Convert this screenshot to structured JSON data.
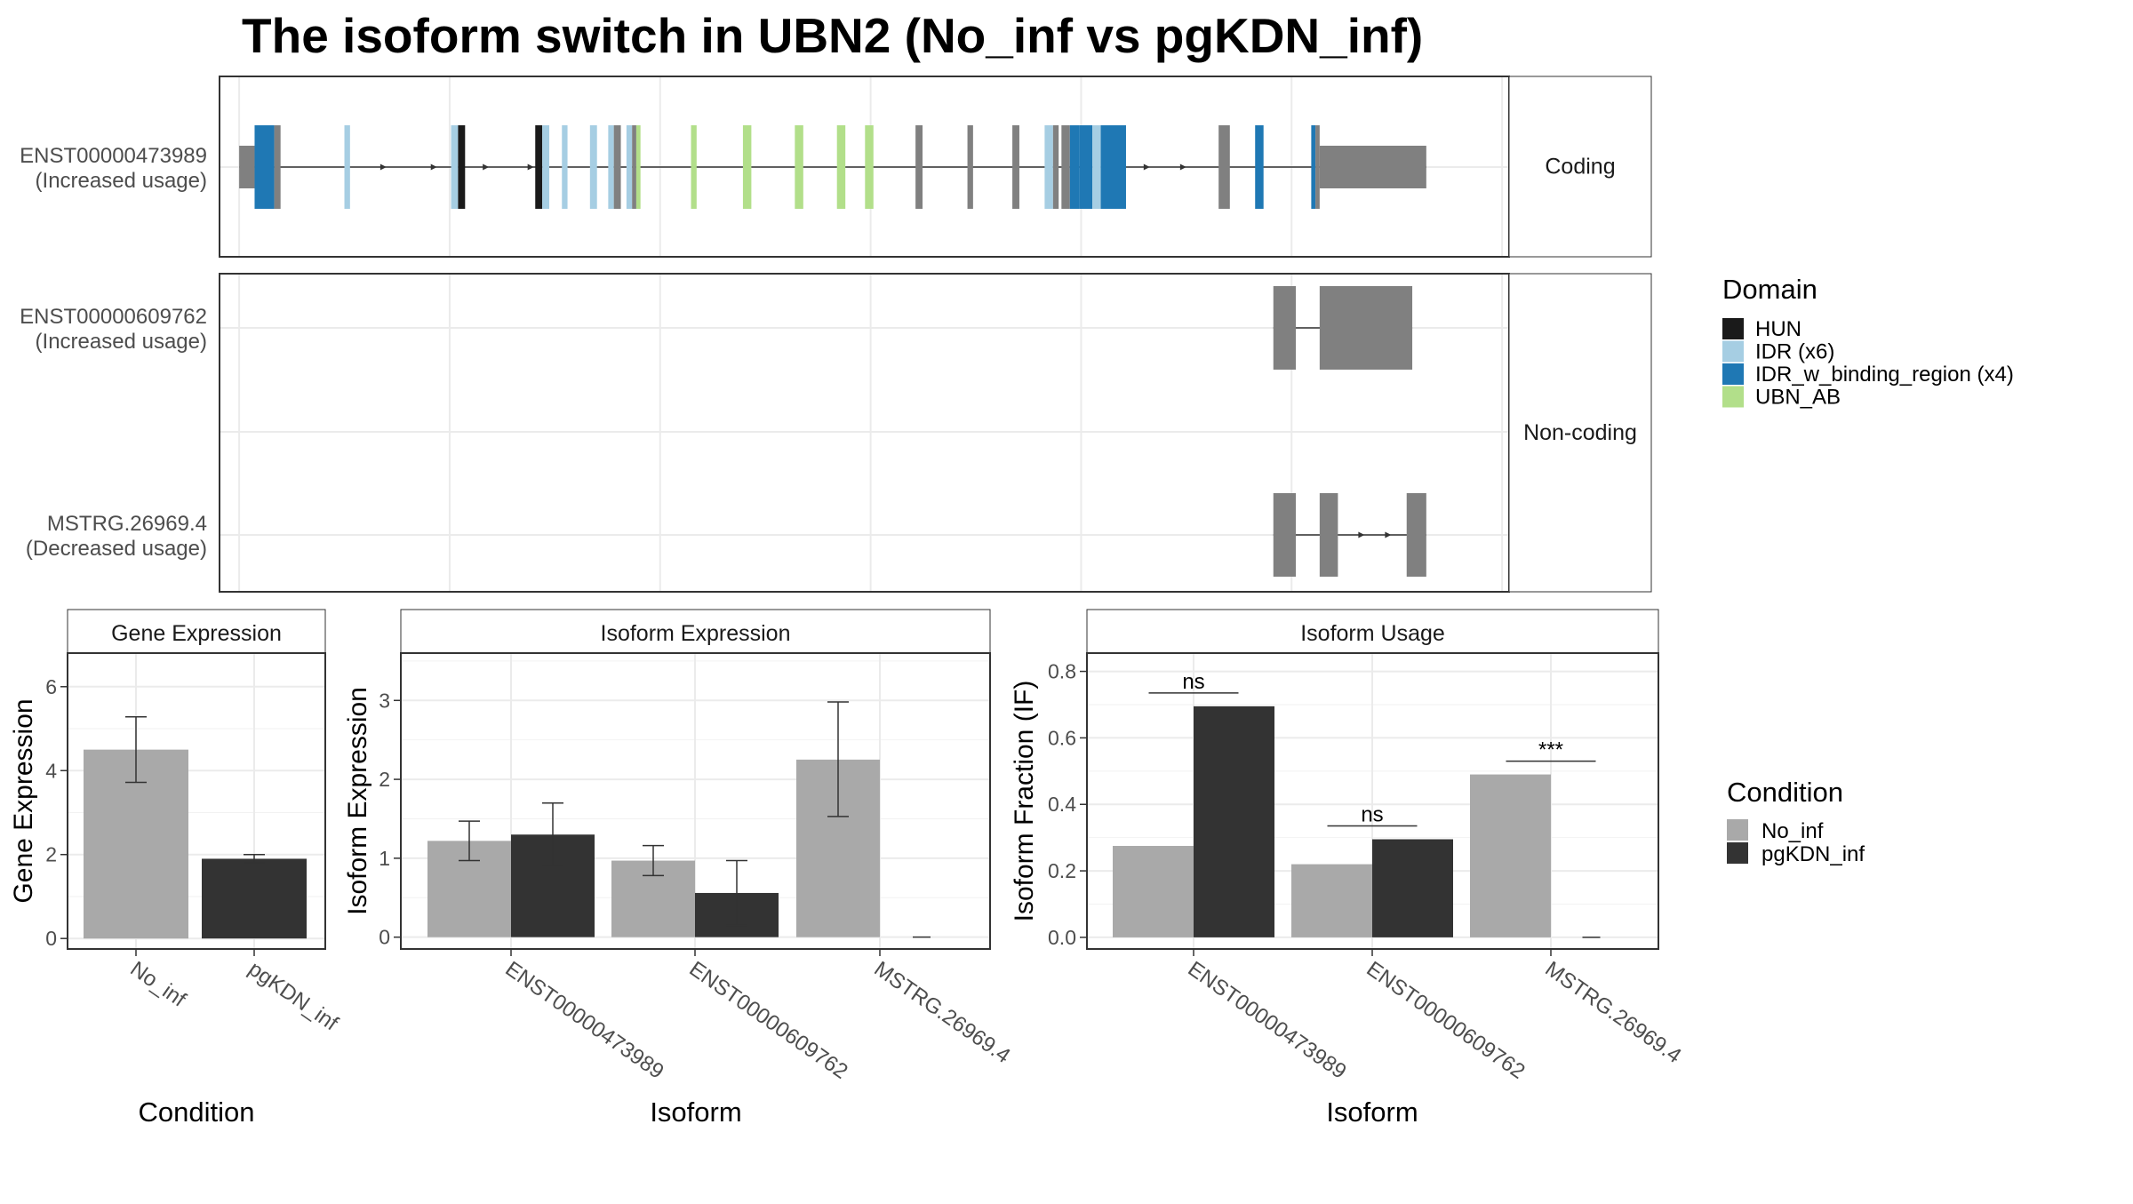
{
  "title": "The isoform switch in UBN2 (No_inf vs pgKDN_inf)",
  "colors": {
    "HUN": "#1a1a1a",
    "IDR (x6)": "#a6cee3",
    "IDR_w_binding_region (x4)": "#1f78b4",
    "UBN_AB": "#b2df8a",
    "exon_gray": "#808080",
    "No_inf": "#a9a9a9",
    "pgKDN_inf": "#333333"
  },
  "structure": {
    "facets": [
      "Coding",
      "Non-coding"
    ],
    "domain_legend_title": "Domain",
    "domains": [
      "HUN",
      "IDR (x6)",
      "IDR_w_binding_region (x4)",
      "UBN_AB"
    ],
    "isoforms": [
      {
        "id": "ENST00000473989",
        "label_line1": "ENST00000473989",
        "label_line2": "(Increased usage)",
        "facet": "Coding",
        "exons": [
          {
            "start": 0.0,
            "end": 1.1,
            "cds": false
          },
          {
            "start": 1.1,
            "end": 2.5,
            "cds": true,
            "domain": "IDR_w_binding_region (x4)"
          },
          {
            "start": 2.5,
            "end": 2.95,
            "cds": true,
            "domain": null
          },
          {
            "start": 7.5,
            "end": 7.9,
            "cds": true,
            "domain": "IDR (x6)"
          },
          {
            "start": 15.1,
            "end": 15.6,
            "cds": true,
            "domain": "IDR (x6)"
          },
          {
            "start": 15.6,
            "end": 16.1,
            "cds": true,
            "domain": "HUN"
          },
          {
            "start": 21.1,
            "end": 21.6,
            "cds": true,
            "domain": "HUN"
          },
          {
            "start": 21.6,
            "end": 22.1,
            "cds": true,
            "domain": "IDR (x6)"
          },
          {
            "start": 23.0,
            "end": 23.4,
            "cds": true,
            "domain": "IDR (x6)"
          },
          {
            "start": 25.0,
            "end": 25.5,
            "cds": true,
            "domain": "IDR (x6)"
          },
          {
            "start": 26.3,
            "end": 26.7,
            "cds": true,
            "domain": "IDR (x6)"
          },
          {
            "start": 26.7,
            "end": 27.2,
            "cds": true,
            "domain": null
          },
          {
            "start": 27.6,
            "end": 28.0,
            "cds": true,
            "domain": "IDR (x6)"
          },
          {
            "start": 28.0,
            "end": 28.3,
            "cds": true,
            "domain": null
          },
          {
            "start": 28.3,
            "end": 28.6,
            "cds": true,
            "domain": "UBN_AB"
          },
          {
            "start": 32.2,
            "end": 32.6,
            "cds": true,
            "domain": "UBN_AB"
          },
          {
            "start": 35.9,
            "end": 36.5,
            "cds": true,
            "domain": "UBN_AB"
          },
          {
            "start": 39.6,
            "end": 40.2,
            "cds": true,
            "domain": "UBN_AB"
          },
          {
            "start": 42.6,
            "end": 43.2,
            "cds": true,
            "domain": "UBN_AB"
          },
          {
            "start": 44.6,
            "end": 45.2,
            "cds": true,
            "domain": "UBN_AB"
          },
          {
            "start": 48.2,
            "end": 48.7,
            "cds": true,
            "domain": null
          },
          {
            "start": 51.9,
            "end": 52.3,
            "cds": true,
            "domain": null
          },
          {
            "start": 55.1,
            "end": 55.6,
            "cds": true,
            "domain": null
          },
          {
            "start": 57.4,
            "end": 58.0,
            "cds": true,
            "domain": "IDR (x6)"
          },
          {
            "start": 58.0,
            "end": 58.4,
            "cds": true,
            "domain": null
          },
          {
            "start": 58.6,
            "end": 59.2,
            "cds": true,
            "domain": null
          },
          {
            "start": 59.2,
            "end": 59.9,
            "cds": true,
            "domain": "IDR_w_binding_region (x4)"
          },
          {
            "start": 59.9,
            "end": 60.8,
            "cds": true,
            "domain": "IDR_w_binding_region (x4)"
          },
          {
            "start": 60.8,
            "end": 61.4,
            "cds": true,
            "domain": "IDR (x6)"
          },
          {
            "start": 61.4,
            "end": 63.2,
            "cds": true,
            "domain": "IDR_w_binding_region (x4)"
          },
          {
            "start": 69.8,
            "end": 70.6,
            "cds": true,
            "domain": null
          },
          {
            "start": 72.4,
            "end": 73.0,
            "cds": true,
            "domain": "IDR_w_binding_region (x4)"
          },
          {
            "start": 76.4,
            "end": 76.7,
            "cds": true,
            "domain": "IDR_w_binding_region (x4)"
          },
          {
            "start": 76.7,
            "end": 77.0,
            "cds": true,
            "domain": null
          },
          {
            "start": 77.0,
            "end": 84.6,
            "cds": false
          }
        ],
        "arrows": [
          10.5,
          14.1,
          17.8,
          21.0,
          64.9,
          67.5
        ]
      },
      {
        "id": "ENST00000609762",
        "label_line1": "ENST00000609762",
        "label_line2": "(Increased usage)",
        "facet": "Non-coding",
        "exons": [
          {
            "start": 73.7,
            "end": 75.3,
            "cds": true,
            "domain": null
          },
          {
            "start": 77.0,
            "end": 83.6,
            "cds": true,
            "domain": null
          }
        ],
        "arrows": []
      },
      {
        "id": "MSTRG.26969.4",
        "label_line1": "MSTRG.26969.4",
        "label_line2": "(Decreased usage)",
        "facet": "Non-coding",
        "exons": [
          {
            "start": 73.7,
            "end": 75.3,
            "cds": true,
            "domain": null
          },
          {
            "start": 77.0,
            "end": 78.3,
            "cds": true,
            "domain": null
          },
          {
            "start": 83.2,
            "end": 84.6,
            "cds": true,
            "domain": null
          }
        ],
        "arrows": [
          80.2,
          82.1
        ]
      }
    ]
  },
  "condition_legend": {
    "title": "Condition",
    "entries": [
      "No_inf",
      "pgKDN_inf"
    ]
  },
  "chart_data": [
    {
      "type": "bar",
      "title": "Gene Expression",
      "xlabel": "Condition",
      "ylabel": "Gene Expression",
      "categories": [
        "No_inf",
        "pgKDN_inf"
      ],
      "values": [
        4.5,
        1.9
      ],
      "error_low": [
        3.72,
        1.8
      ],
      "error_high": [
        5.28,
        2.0
      ],
      "ylim": [
        -0.25,
        6.8
      ],
      "yticks": [
        0,
        2,
        4,
        6
      ],
      "ytick_labels": [
        "0",
        "2",
        "4",
        "6"
      ],
      "grid": true
    },
    {
      "type": "bar",
      "title": "Isoform Expression",
      "xlabel": "Isoform",
      "ylabel": "Isoform Expression",
      "categories": [
        "ENST00000473989",
        "ENST00000609762",
        "MSTRG.26969.4"
      ],
      "series": [
        {
          "name": "No_inf",
          "values": [
            1.22,
            0.97,
            2.25
          ],
          "error_low": [
            0.97,
            0.78,
            1.53
          ],
          "error_high": [
            1.47,
            1.16,
            2.98
          ]
        },
        {
          "name": "pgKDN_inf",
          "values": [
            1.3,
            0.56,
            0.0
          ],
          "error_low": [
            0.91,
            0.15,
            0.0
          ],
          "error_high": [
            1.7,
            0.97,
            0.0
          ]
        }
      ],
      "ylim": [
        -0.15,
        3.6
      ],
      "yticks": [
        0,
        1,
        2,
        3
      ],
      "ytick_labels": [
        "0",
        "1",
        "2",
        "3"
      ],
      "grid": true
    },
    {
      "type": "bar",
      "title": "Isoform Usage",
      "xlabel": "Isoform",
      "ylabel": "Isoform Fraction (IF)",
      "categories": [
        "ENST00000473989",
        "ENST00000609762",
        "MSTRG.26969.4"
      ],
      "series": [
        {
          "name": "No_inf",
          "values": [
            0.275,
            0.22,
            0.49
          ]
        },
        {
          "name": "pgKDN_inf",
          "values": [
            0.695,
            0.295,
            0.0
          ]
        }
      ],
      "significance": [
        "ns",
        "ns",
        "***"
      ],
      "ylim": [
        -0.035,
        0.855
      ],
      "yticks": [
        0,
        0.2,
        0.4,
        0.6,
        0.8
      ],
      "ytick_labels": [
        "0.0",
        "0.2",
        "0.4",
        "0.6",
        "0.8"
      ],
      "grid": true
    }
  ]
}
